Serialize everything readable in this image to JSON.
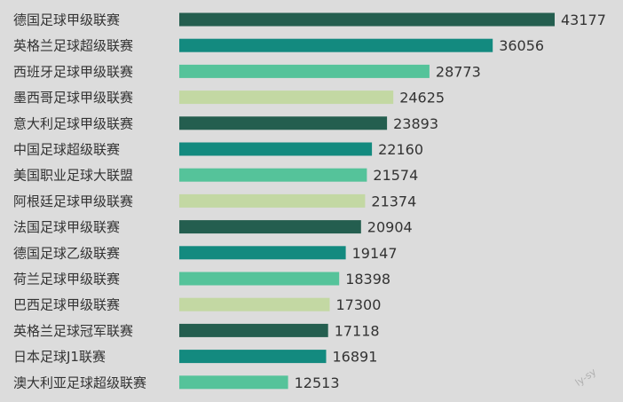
{
  "chart_data": {
    "type": "bar",
    "orientation": "horizontal",
    "categories": [
      "德国足球甲级联赛",
      "英格兰足球超级联赛",
      "西班牙足球甲级联赛",
      "墨西哥足球甲级联赛",
      "意大利足球甲级联赛",
      "中国足球超级联赛",
      "美国职业足球大联盟",
      "阿根廷足球甲级联赛",
      "法国足球甲级联赛",
      "德国足球乙级联赛",
      "荷兰足球甲级联赛",
      "巴西足球甲级联赛",
      "英格兰足球冠军联赛",
      "日本足球J1联赛",
      "澳大利亚足球超级联赛"
    ],
    "values": [
      43177,
      36056,
      28773,
      24625,
      23893,
      22160,
      21574,
      21374,
      20904,
      19147,
      18398,
      17300,
      17118,
      16891,
      12513
    ],
    "title": "",
    "xlabel": "",
    "ylabel": "",
    "grid": false,
    "legend": "none",
    "palette": [
      "#245e4f",
      "#138a7f",
      "#55c39a",
      "#c3d8a3"
    ],
    "background": "#dcdcdc"
  },
  "watermark": "ly-sy"
}
